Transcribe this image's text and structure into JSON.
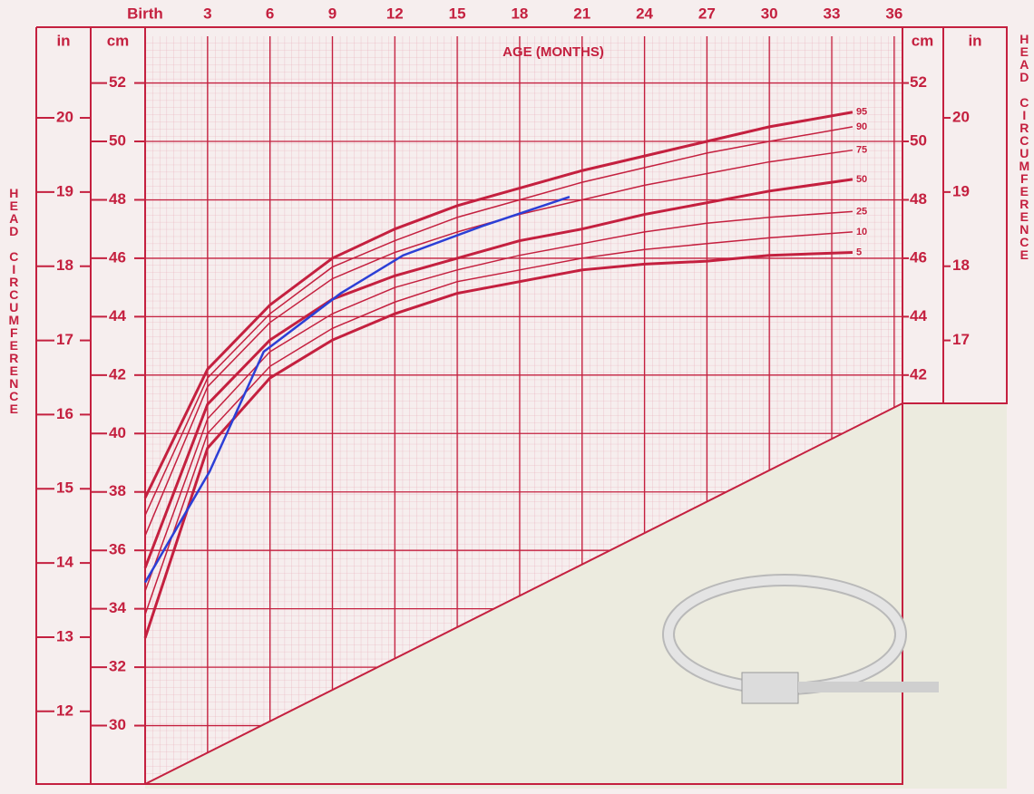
{
  "chart_data": {
    "type": "line",
    "x_axis_label": "AGE (MONTHS)",
    "y_axis_label": "HEAD CIRCUMFERENCE",
    "column_headers": {
      "inch": "in",
      "cm": "cm"
    },
    "xlim": [
      0,
      36.4
    ],
    "xticks": [
      {
        "value": 0,
        "label": "Birth"
      },
      3,
      6,
      9,
      12,
      15,
      18,
      21,
      24,
      27,
      30,
      33,
      36
    ],
    "ylim": [
      28,
      53.6
    ],
    "yticks": [
      30,
      32,
      34,
      36,
      38,
      40,
      42,
      44,
      46,
      48,
      50,
      52
    ],
    "y2lim": [
      11.02,
      21.1
    ],
    "y2ticks": [
      12,
      13,
      14,
      15,
      16,
      17,
      18,
      19,
      20
    ],
    "grid": true,
    "x": [
      0,
      3,
      6,
      9,
      12,
      15,
      18,
      21,
      24,
      27,
      30,
      34
    ],
    "series": [
      {
        "name": "95",
        "color": "#c4203f",
        "width": 3,
        "values": [
          37.8,
          42.2,
          44.4,
          46.0,
          47.0,
          47.8,
          48.4,
          49.0,
          49.5,
          50.0,
          50.5,
          51.0
        ]
      },
      {
        "name": "90",
        "color": "#c4203f",
        "width": 1.5,
        "values": [
          37.2,
          41.9,
          44.1,
          45.7,
          46.6,
          47.4,
          48.0,
          48.6,
          49.1,
          49.6,
          50.0,
          50.5
        ]
      },
      {
        "name": "75",
        "color": "#c4203f",
        "width": 1.5,
        "values": [
          36.5,
          41.6,
          43.8,
          45.3,
          46.2,
          46.9,
          47.5,
          48.0,
          48.5,
          48.9,
          49.3,
          49.7
        ]
      },
      {
        "name": "50",
        "color": "#c4203f",
        "width": 3,
        "values": [
          35.4,
          41.0,
          43.2,
          44.6,
          45.4,
          46.0,
          46.6,
          47.0,
          47.5,
          47.9,
          48.3,
          48.7
        ]
      },
      {
        "name": "25",
        "color": "#c4203f",
        "width": 1.5,
        "values": [
          34.6,
          40.5,
          42.8,
          44.1,
          45.0,
          45.6,
          46.1,
          46.5,
          46.9,
          47.2,
          47.4,
          47.6
        ]
      },
      {
        "name": "10",
        "color": "#c4203f",
        "width": 1.5,
        "values": [
          33.8,
          40.0,
          42.3,
          43.6,
          44.5,
          45.2,
          45.6,
          46.0,
          46.3,
          46.5,
          46.7,
          46.9
        ]
      },
      {
        "name": "5",
        "color": "#c4203f",
        "width": 3,
        "values": [
          33.0,
          39.5,
          41.9,
          43.2,
          44.1,
          44.8,
          45.2,
          45.6,
          45.8,
          45.9,
          46.1,
          46.2
        ]
      }
    ],
    "patient": {
      "color": "#2b3fd6",
      "x": [
        0,
        3.1,
        5.7,
        9.4,
        12.4,
        16.2,
        20.4
      ],
      "values": [
        34.9,
        38.7,
        42.8,
        44.8,
        46.1,
        47.1,
        48.1
      ]
    }
  }
}
